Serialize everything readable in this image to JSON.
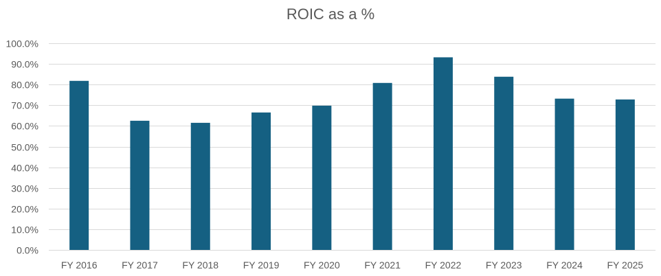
{
  "chart_data": {
    "type": "bar",
    "title": "ROIC as a %",
    "xlabel": "",
    "ylabel": "",
    "categories": [
      "FY 2016",
      "FY 2017",
      "FY 2018",
      "FY 2019",
      "FY 2020",
      "FY 2021",
      "FY 2022",
      "FY 2023",
      "FY 2024",
      "FY 2025"
    ],
    "values": [
      81.8,
      62.5,
      61.5,
      66.5,
      69.8,
      80.8,
      93.2,
      83.8,
      73.2,
      72.8
    ],
    "ylim": [
      0,
      100
    ],
    "y_ticks": [
      0,
      10,
      20,
      30,
      40,
      50,
      60,
      70,
      80,
      90,
      100
    ],
    "y_tick_labels": [
      "0.0%",
      "10.0%",
      "20.0%",
      "30.0%",
      "40.0%",
      "50.0%",
      "60.0%",
      "70.0%",
      "80.0%",
      "90.0%",
      "100.0%"
    ],
    "grid": true,
    "legend": "none",
    "bar_color": "#156082"
  }
}
